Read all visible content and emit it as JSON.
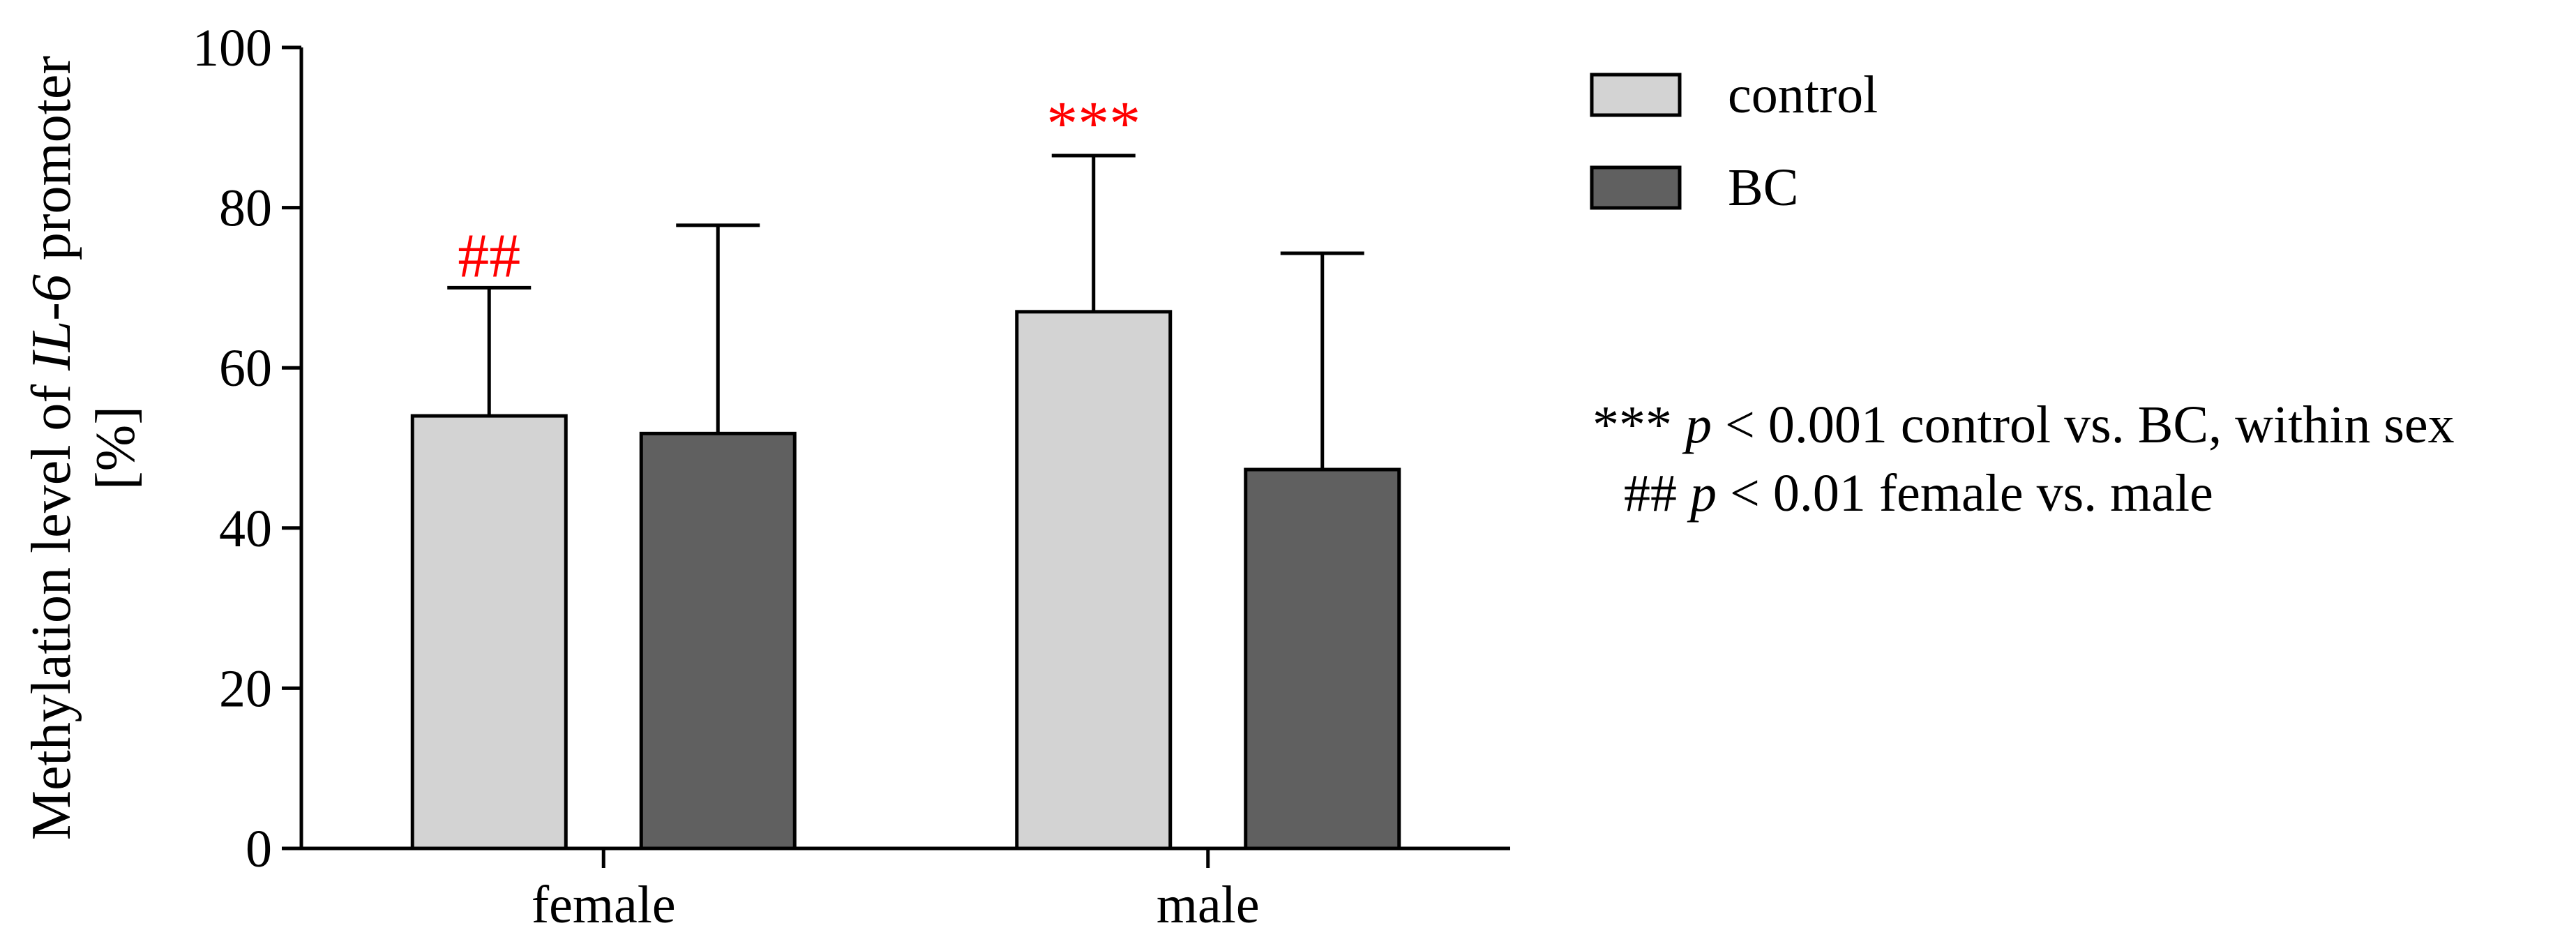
{
  "chart_data": {
    "type": "bar",
    "categories": [
      "female",
      "male"
    ],
    "series": [
      {
        "name": "control",
        "values": [
          54,
          67
        ],
        "errors": [
          16,
          19.5
        ],
        "color": "#d3d3d3"
      },
      {
        "name": "BC",
        "values": [
          51.8,
          47.3
        ],
        "errors": [
          26,
          27
        ],
        "color": "#606060"
      }
    ],
    "ylabel_parts": [
      "Methylation level of ",
      "IL-6",
      " promoter"
    ],
    "ylabel_line2": "[%]",
    "ylim": [
      0,
      100
    ],
    "yticks": [
      0,
      20,
      40,
      60,
      80,
      100
    ],
    "significance": [
      {
        "category": 0,
        "series": 0,
        "label": "##",
        "color": "#ff0000"
      },
      {
        "category": 1,
        "series": 0,
        "label": "***",
        "color": "#ff0000"
      }
    ],
    "legend": {
      "position": "top-right"
    },
    "notes": [
      {
        "prefix": "***",
        "p": "p",
        "text": " < 0.001 control vs. BC, within sex"
      },
      {
        "prefix": "##",
        "p": "p",
        "text": " < 0.01 female vs. male"
      }
    ]
  }
}
